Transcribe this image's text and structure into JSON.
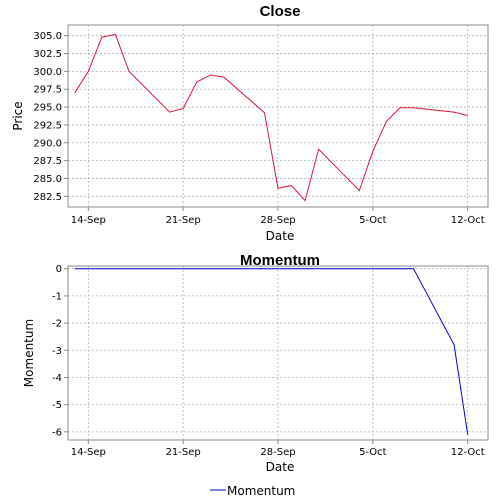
{
  "chart_data": [
    {
      "type": "line",
      "title": "Close",
      "xlabel": "Date",
      "ylabel": "Price",
      "x_ticks": [
        "14-Sep",
        "21-Sep",
        "28-Sep",
        "5-Oct",
        "12-Oct"
      ],
      "y_ticks": [
        "282.5",
        "285.0",
        "287.5",
        "290.0",
        "292.5",
        "295.0",
        "297.5",
        "300.0",
        "302.5",
        "305.0"
      ],
      "ylim": [
        281.0,
        306.5
      ],
      "grid": true,
      "color": "#dc143c",
      "series": [
        {
          "x": [
            "2020-09-13",
            "2020-09-14",
            "2020-09-15",
            "2020-09-16",
            "2020-09-17",
            "2020-09-20",
            "2020-09-21",
            "2020-09-22",
            "2020-09-23",
            "2020-09-24",
            "2020-09-27",
            "2020-09-28",
            "2020-09-29",
            "2020-09-30",
            "2020-10-01",
            "2020-10-04",
            "2020-10-05",
            "2020-10-06",
            "2020-10-07",
            "2020-10-08",
            "2020-10-11",
            "2020-10-12"
          ],
          "values": [
            297.0,
            300.0,
            304.8,
            305.2,
            300.0,
            294.3,
            294.8,
            298.5,
            299.5,
            299.2,
            294.2,
            283.6,
            284.0,
            281.9,
            289.1,
            283.3,
            288.8,
            293.0,
            294.9,
            294.9,
            294.3,
            293.8
          ]
        }
      ]
    },
    {
      "type": "line",
      "title": "Momentum",
      "xlabel": "Date",
      "ylabel": "Momentum",
      "x_ticks": [
        "14-Sep",
        "21-Sep",
        "28-Sep",
        "5-Oct",
        "12-Oct"
      ],
      "y_ticks": [
        "0",
        "-1",
        "-2",
        "-3",
        "-4",
        "-5",
        "-6"
      ],
      "ylim": [
        -6.3,
        0.1
      ],
      "grid": true,
      "color": "#0000cd",
      "legend": "bottom",
      "series": [
        {
          "name": "Momentum",
          "x": [
            "2020-09-13",
            "2020-09-14",
            "2020-09-15",
            "2020-09-16",
            "2020-09-17",
            "2020-09-20",
            "2020-09-21",
            "2020-09-22",
            "2020-09-23",
            "2020-09-24",
            "2020-09-27",
            "2020-09-28",
            "2020-09-29",
            "2020-09-30",
            "2020-10-01",
            "2020-10-04",
            "2020-10-05",
            "2020-10-06",
            "2020-10-07",
            "2020-10-08",
            "2020-10-11",
            "2020-10-12"
          ],
          "values": [
            0,
            0,
            0,
            0,
            0,
            0,
            0,
            0,
            0,
            0,
            0,
            0,
            0,
            0,
            0,
            0,
            0,
            0,
            0,
            0,
            -2.8,
            -6.1
          ]
        }
      ]
    }
  ]
}
